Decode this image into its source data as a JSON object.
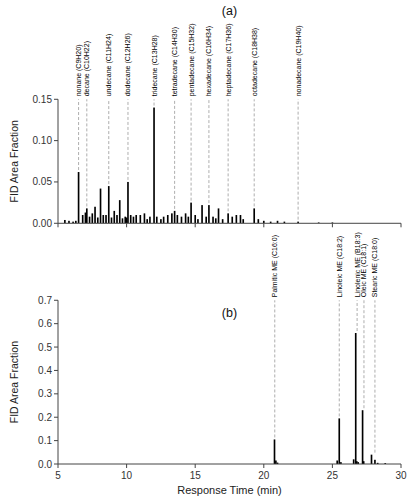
{
  "chart_data": [
    {
      "type": "bar",
      "title": "(a)",
      "ylabel": "FID Area Fraction",
      "color": "#000000",
      "xlim": [
        5,
        30
      ],
      "ylim": [
        0,
        0.15
      ],
      "xticks": [
        5,
        10,
        15,
        20,
        25,
        30
      ],
      "yticks": [
        {
          "value": 0.0,
          "label": "0.00"
        },
        0.05,
        {
          "value": 0.1,
          "label": "0.10"
        },
        0.15
      ],
      "tick_labels": "y",
      "grid": false,
      "x": [
        5.5,
        5.8,
        6.1,
        6.3,
        6.5,
        6.8,
        7.0,
        7.1,
        7.3,
        7.5,
        7.7,
        7.9,
        8.1,
        8.3,
        8.5,
        8.7,
        8.9,
        9.1,
        9.3,
        9.5,
        9.7,
        9.9,
        10.0,
        10.1,
        10.3,
        10.5,
        10.7,
        11.0,
        11.3,
        11.5,
        11.7,
        12.0,
        12.2,
        12.5,
        12.7,
        13.0,
        13.3,
        13.5,
        13.7,
        14.0,
        14.3,
        14.5,
        14.7,
        15.0,
        15.2,
        15.5,
        15.8,
        16.0,
        16.3,
        16.5,
        16.7,
        17.0,
        17.4,
        17.7,
        18.0,
        18.3,
        18.5,
        19.3,
        19.6,
        20.0,
        20.5,
        21.0,
        21.5,
        22.5,
        24.0,
        25.0
      ],
      "values": [
        0.004,
        0.003,
        0.002,
        0.003,
        0.062,
        0.01,
        0.013,
        0.018,
        0.008,
        0.012,
        0.02,
        0.007,
        0.042,
        0.01,
        0.01,
        0.045,
        0.007,
        0.015,
        0.01,
        0.028,
        0.006,
        0.008,
        0.007,
        0.05,
        0.01,
        0.008,
        0.01,
        0.01,
        0.012,
        0.005,
        0.008,
        0.14,
        0.008,
        0.005,
        0.008,
        0.01,
        0.012,
        0.015,
        0.01,
        0.008,
        0.012,
        0.008,
        0.025,
        0.01,
        0.005,
        0.022,
        0.008,
        0.022,
        0.008,
        0.006,
        0.018,
        0.005,
        0.012,
        0.008,
        0.01,
        0.01,
        0.005,
        0.018,
        0.005,
        0.003,
        0.002,
        0.003,
        0.002,
        0.002,
        0.001,
        0.001
      ],
      "annotations": [
        {
          "x": 6.5,
          "y": 0.062,
          "label": "nonane (C9H20)"
        },
        {
          "x": 7.1,
          "y": 0.018,
          "label": "decane (C10H22)"
        },
        {
          "x": 8.7,
          "y": 0.045,
          "label": "undecane (C11H24)"
        },
        {
          "x": 10.1,
          "y": 0.05,
          "label": "dodecane (C12H26)"
        },
        {
          "x": 12.0,
          "y": 0.14,
          "label": "tridecane (C13H28)"
        },
        {
          "x": 13.5,
          "y": 0.015,
          "label": "tetradecane (C14H30)"
        },
        {
          "x": 14.7,
          "y": 0.025,
          "label": "pentadecane (C15H32)"
        },
        {
          "x": 16.0,
          "y": 0.022,
          "label": "hexadecane (C16H34)"
        },
        {
          "x": 17.4,
          "y": 0.012,
          "label": "heptadecane (C17H36)"
        },
        {
          "x": 19.3,
          "y": 0.018,
          "label": "octadecane (C18H38)"
        },
        {
          "x": 22.5,
          "y": 0.002,
          "label": "nonadecane (C19H40)"
        }
      ]
    },
    {
      "type": "bar",
      "title": "(b)",
      "xlabel": "Response Time (min)",
      "ylabel": "FID Area Fraction",
      "color": "#000000",
      "xlim": [
        5,
        30
      ],
      "ylim": [
        0,
        0.7
      ],
      "xticks": [
        5,
        10,
        15,
        20,
        25,
        30
      ],
      "yticks": [
        {
          "value": 0.0,
          "label": "0.0"
        },
        0.1,
        0.2,
        0.3,
        0.4,
        0.5,
        0.6,
        0.7
      ],
      "grid": false,
      "x": [
        20.78,
        20.88,
        21.0,
        25.35,
        25.5,
        25.62,
        26.55,
        26.7,
        26.78,
        26.88,
        27.2,
        27.28,
        27.85,
        28.1,
        28.3,
        28.85
      ],
      "values": [
        0.105,
        0.015,
        0.006,
        0.015,
        0.195,
        0.008,
        0.02,
        0.56,
        0.012,
        0.008,
        0.23,
        0.012,
        0.04,
        0.018,
        0.005,
        0.004
      ],
      "annotations": [
        {
          "x": 20.8,
          "y": 0.105,
          "label": "Palmitic ME (C16:0)"
        },
        {
          "x": 25.5,
          "y": 0.195,
          "label": "Linoleic ME (C18:2)"
        },
        {
          "x": 26.8,
          "y": 0.56,
          "label": "Linolenic ME (B18:3)"
        },
        {
          "x": 27.3,
          "y": 0.23,
          "label": "Oleic ME (C18:1)"
        },
        {
          "x": 28.1,
          "y": 0.04,
          "label": "Stearic ME (C18:0)"
        }
      ]
    }
  ]
}
